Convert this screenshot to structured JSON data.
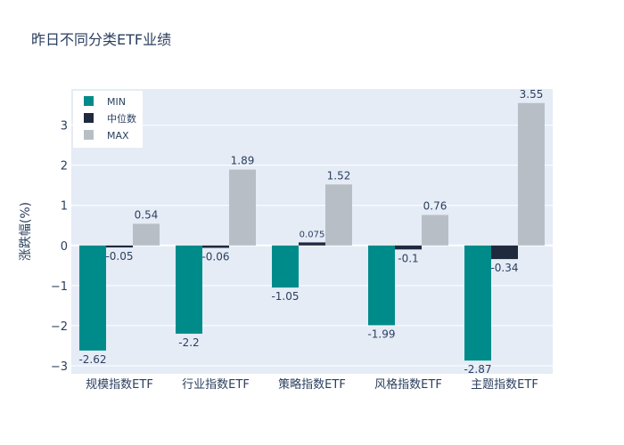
{
  "chart_data": {
    "type": "bar",
    "title": "昨日不同分类ETF业绩",
    "xlabel": "",
    "ylabel": "涨跌幅(%)",
    "categories": [
      "规模指数ETF",
      "行业指数ETF",
      "策略指数ETF",
      "风格指数ETF",
      "主题指数ETF"
    ],
    "series": [
      {
        "name": "MIN",
        "color": "#008b8b",
        "values": [
          -2.62,
          -2.2,
          -1.05,
          -1.99,
          -2.87
        ]
      },
      {
        "name": "中位数",
        "color": "#1f2a3f",
        "values": [
          -0.05,
          -0.06,
          0.075,
          -0.1,
          -0.34
        ]
      },
      {
        "name": "MAX",
        "color": "#b7bec6",
        "values": [
          0.54,
          1.89,
          1.52,
          0.76,
          3.55
        ]
      }
    ],
    "ylim": [
      -3.2,
      3.9
    ],
    "yticks": [
      -3,
      -2,
      -1,
      0,
      1,
      2,
      3
    ],
    "ytick_labels": [
      "−3",
      "−2",
      "−1",
      "0",
      "1",
      "2",
      "3"
    ],
    "grid": true,
    "legend_position": "top-left",
    "background_color": "#e5ecf6"
  }
}
